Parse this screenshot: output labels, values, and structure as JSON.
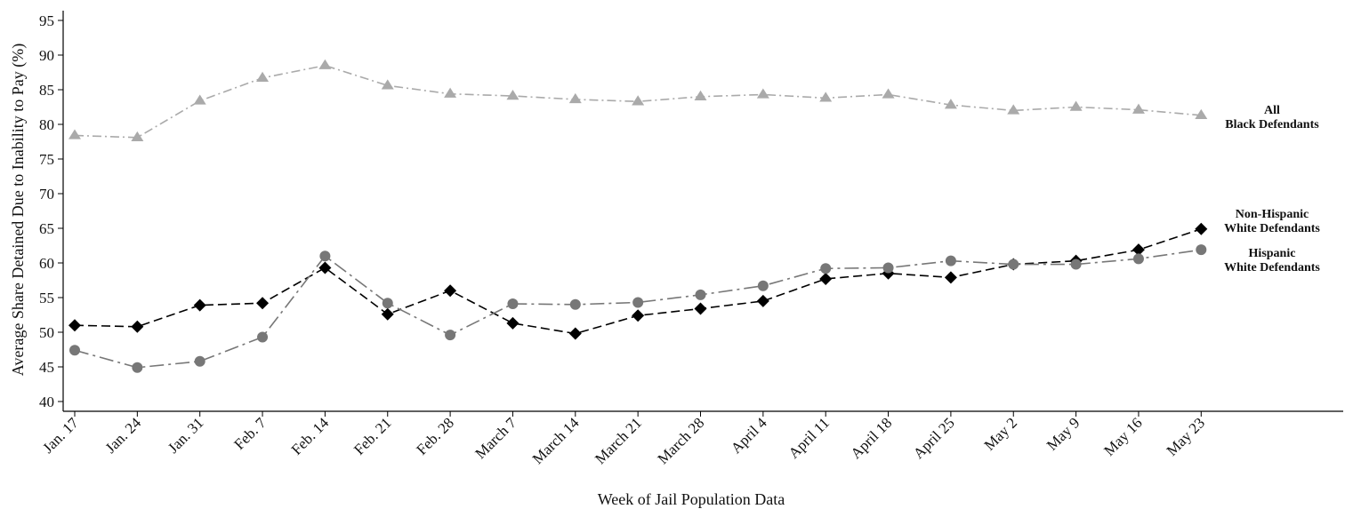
{
  "chart_data": {
    "type": "line",
    "xlabel": "Week of Jail Population Data",
    "ylabel": "Average Share Detained Due to Inability to Pay (%)",
    "ylim": [
      40,
      95
    ],
    "yticks": [
      40,
      45,
      50,
      55,
      60,
      65,
      70,
      75,
      80,
      85,
      90,
      95
    ],
    "grid": false,
    "categories": [
      "Jan. 17",
      "Jan. 24",
      "Jan. 31",
      "Feb. 7",
      "Feb. 14",
      "Feb. 21",
      "Feb. 28",
      "March 7",
      "March 14",
      "March 21",
      "March 28",
      "April 4",
      "April 11",
      "April 18",
      "April 25",
      "May 2",
      "May 9",
      "May 16",
      "May 23"
    ],
    "series": [
      {
        "label_lines": [
          "All",
          "Black Defendants"
        ],
        "color": "#aaaaaa",
        "marker": "triangle",
        "dash": "dash-dot",
        "values": [
          78.4,
          78.1,
          83.4,
          86.7,
          88.5,
          85.6,
          84.4,
          84.1,
          83.6,
          83.3,
          84.0,
          84.3,
          83.8,
          84.3,
          82.8,
          82.0,
          82.5,
          82.1,
          81.3
        ]
      },
      {
        "label_lines": [
          "Non-Hispanic",
          "White Defendants"
        ],
        "color": "#000000",
        "marker": "diamond",
        "dash": "dash",
        "values": [
          51.0,
          50.8,
          53.9,
          54.2,
          59.3,
          52.6,
          56.0,
          51.3,
          49.8,
          52.4,
          53.4,
          54.5,
          57.7,
          58.5,
          57.9,
          59.8,
          60.3,
          61.9,
          64.9
        ]
      },
      {
        "label_lines": [
          "Hispanic",
          "White Defendants"
        ],
        "color": "#777777",
        "marker": "circle",
        "dash": "long-dash-dot",
        "values": [
          47.4,
          44.9,
          45.8,
          49.3,
          61.0,
          54.2,
          49.6,
          54.1,
          54.0,
          54.3,
          55.4,
          56.7,
          59.2,
          59.3,
          60.3,
          59.8,
          59.8,
          60.6,
          61.9
        ]
      }
    ]
  }
}
